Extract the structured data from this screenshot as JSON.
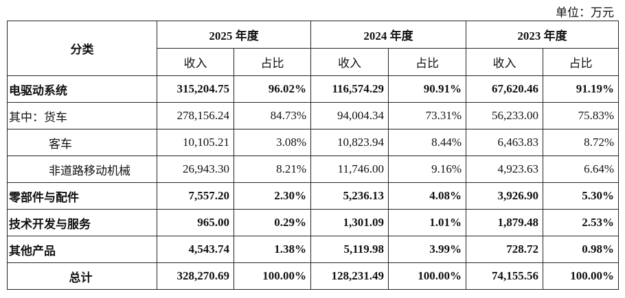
{
  "unit": "单位：万元",
  "table": {
    "header": {
      "category": "分类",
      "years": [
        "2025 年度",
        "2024 年度",
        "2023 年度"
      ],
      "sub": [
        "收入",
        "占比"
      ]
    },
    "rows": [
      {
        "label": "电驱动系统",
        "cells": [
          "315,204.75",
          "96.02%",
          "116,574.29",
          "90.91%",
          "67,620.46",
          "91.19%"
        ]
      },
      {
        "label": "其中：货车",
        "cells": [
          "278,156.24",
          "84.73%",
          "94,004.34",
          "73.31%",
          "56,233.00",
          "75.83%"
        ]
      },
      {
        "label": "客车",
        "cells": [
          "10,105.21",
          "3.08%",
          "10,823.94",
          "8.44%",
          "6,463.83",
          "8.72%"
        ]
      },
      {
        "label": "非道路移动机械",
        "cells": [
          "26,943.30",
          "8.21%",
          "11,746.00",
          "9.16%",
          "4,923.63",
          "6.64%"
        ]
      },
      {
        "label": "零部件与配件",
        "cells": [
          "7,557.20",
          "2.30%",
          "5,236.13",
          "4.08%",
          "3,926.90",
          "5.30%"
        ]
      },
      {
        "label": "技术开发与服务",
        "cells": [
          "965.00",
          "0.29%",
          "1,301.09",
          "1.01%",
          "1,879.48",
          "2.53%"
        ]
      },
      {
        "label": "其他产品",
        "cells": [
          "4,543.74",
          "1.38%",
          "5,119.98",
          "3.99%",
          "728.72",
          "0.98%"
        ]
      },
      {
        "label": "总计",
        "cells": [
          "328,270.69",
          "100.00%",
          "128,231.49",
          "100.00%",
          "74,155.56",
          "100.00%"
        ]
      }
    ]
  }
}
